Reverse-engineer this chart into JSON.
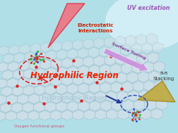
{
  "bg_color": "#b0dfe8",
  "uv_text": "UV excitation",
  "uv_color": "#9b59b6",
  "electrostatic_text": "Electrostatic\nInteractions",
  "electrostatic_color": "#cc2200",
  "surface_tuning_text": "Surface Tuning",
  "surface_tuning_color": "#cc88dd",
  "pi_pi_text": "π-π\nStacking",
  "pi_pi_color": "#333333",
  "hydrophilic_text": "Hydrophilic Region",
  "hydrophilic_color": "#ee2200",
  "hydrophobic_text": "Hydrophobic Region",
  "hydrophobic_color": "#88b8cc",
  "oxygen_text": "Oxygen functional groups",
  "oxygen_color": "#cc5577",
  "graphene_face_color": "#d0e0e8",
  "graphene_edge_color": "#9ab0be",
  "sheet_alpha": 0.85
}
